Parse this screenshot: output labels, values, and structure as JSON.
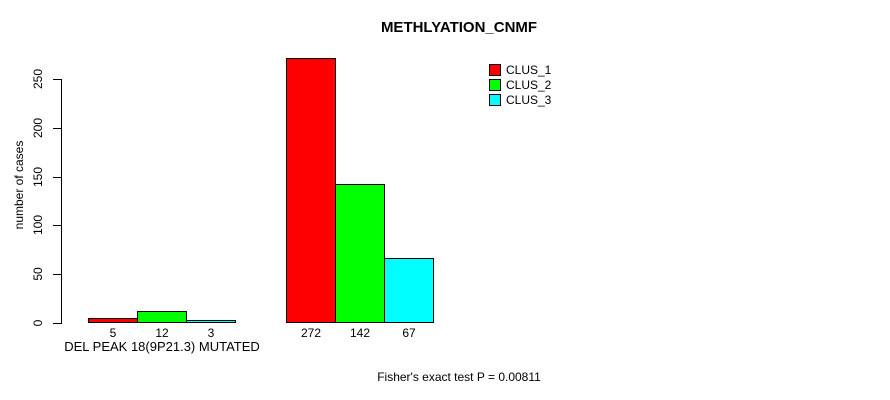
{
  "chart_data": {
    "type": "bar",
    "title": "METHLYATION_CNMF",
    "ylabel": "number of cases",
    "xlabel": "",
    "caption": "Fisher's exact test P = 0.00811",
    "categories": [
      "DEL PEAK 18(9P21.3) MUTATED",
      ""
    ],
    "series": [
      {
        "name": "CLUS_1",
        "color": "#ff0000",
        "values": [
          5,
          272
        ]
      },
      {
        "name": "CLUS_2",
        "color": "#00ff00",
        "values": [
          12,
          142
        ]
      },
      {
        "name": "CLUS_3",
        "color": "#00ffff",
        "values": [
          3,
          67
        ]
      }
    ],
    "yticks": [
      0,
      50,
      100,
      150,
      200,
      250
    ],
    "ylim": [
      0,
      250
    ],
    "bar_value_labels": true,
    "legend_position": "top-right",
    "grid": false,
    "axis_color": "#000000",
    "background": "#ffffff"
  }
}
